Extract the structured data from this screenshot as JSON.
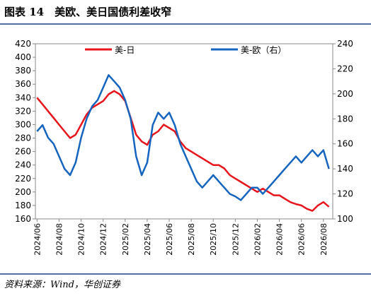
{
  "header": {
    "title": "图表 14　美欧、美日国债利差收窄"
  },
  "chart_data": {
    "type": "line",
    "categories": [
      "2024/06",
      null,
      null,
      null,
      "2024/08",
      null,
      null,
      null,
      "2024/10",
      null,
      null,
      null,
      "2024/12",
      null,
      null,
      null,
      "2025/02",
      null,
      null,
      null,
      "2025/04",
      null,
      null,
      null,
      "2025/06",
      null,
      null,
      null,
      "2025/08",
      null,
      null,
      null,
      "2025/10",
      null,
      null,
      null,
      "2025/12",
      null,
      null,
      null,
      "2026/02",
      null,
      null,
      null,
      "2026/04",
      null,
      null,
      null,
      "2026/06",
      null,
      null,
      null,
      "2026/08",
      null
    ],
    "series": [
      {
        "name": "美-日",
        "color": "#e8141c",
        "values": [
          340,
          330,
          320,
          310,
          300,
          290,
          280,
          285,
          300,
          315,
          325,
          330,
          335,
          345,
          350,
          345,
          335,
          310,
          285,
          275,
          270,
          285,
          290,
          300,
          295,
          290,
          275,
          265,
          260,
          255,
          250,
          245,
          240,
          240,
          235,
          225,
          220,
          215,
          210,
          205,
          200,
          205,
          200,
          195,
          195,
          190,
          185,
          182,
          180,
          175,
          172,
          180,
          185,
          178
        ]
      },
      {
        "name": "美-欧（右）",
        "color": "#1565c0",
        "axis": "y2",
        "values": [
          170,
          175,
          165,
          160,
          150,
          140,
          135,
          145,
          165,
          180,
          190,
          195,
          205,
          215,
          210,
          205,
          195,
          180,
          150,
          135,
          145,
          175,
          185,
          180,
          185,
          175,
          160,
          150,
          140,
          130,
          125,
          130,
          135,
          130,
          125,
          120,
          118,
          115,
          120,
          125,
          125,
          120,
          125,
          130,
          135,
          140,
          145,
          150,
          145,
          150,
          155,
          150,
          155,
          140
        ]
      }
    ],
    "ylim": [
      160,
      420
    ],
    "yticks": [
      160,
      180,
      200,
      220,
      240,
      260,
      280,
      300,
      320,
      340,
      360,
      380,
      400,
      420
    ],
    "y2lim": [
      100,
      240
    ],
    "y2ticks": [
      100,
      120,
      140,
      160,
      180,
      200,
      220,
      240
    ],
    "legend": "top"
  },
  "footer": {
    "source": "资料来源：Wind，华创证券"
  }
}
